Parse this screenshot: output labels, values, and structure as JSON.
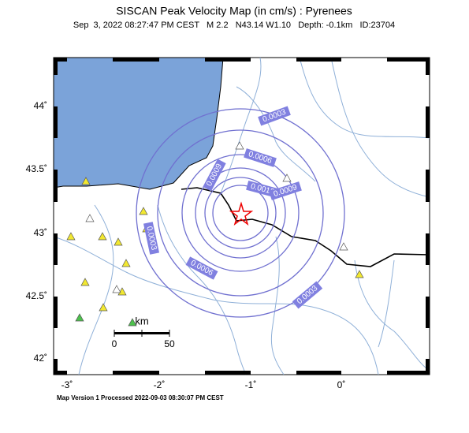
{
  "header": {
    "title": "SISCAN Peak Velocity Map (in cm/s) : Pyrenees",
    "subtitle": "Sep  3, 2022 08:27:47 PM CEST   M 2.2   N43.14 W1.10   Depth: -0.1km   ID:23704"
  },
  "map": {
    "lat_labels": [
      "44˚",
      "43.5˚",
      "43˚",
      "42.5˚",
      "42˚"
    ],
    "lon_labels": [
      "-3˚",
      "-2˚",
      "-1˚",
      "0˚"
    ],
    "scale_bar": {
      "unit": "km",
      "labels": [
        "0",
        "50"
      ]
    },
    "contour_labels": [
      "0.0003",
      "0.0006",
      "0.0009",
      "0.0012",
      "0.0009",
      "0.0003",
      "0.0006",
      "0.0003"
    ]
  },
  "footer": "Map Version 1 Processed 2022-09-03 08:30:07 PM CEST"
}
